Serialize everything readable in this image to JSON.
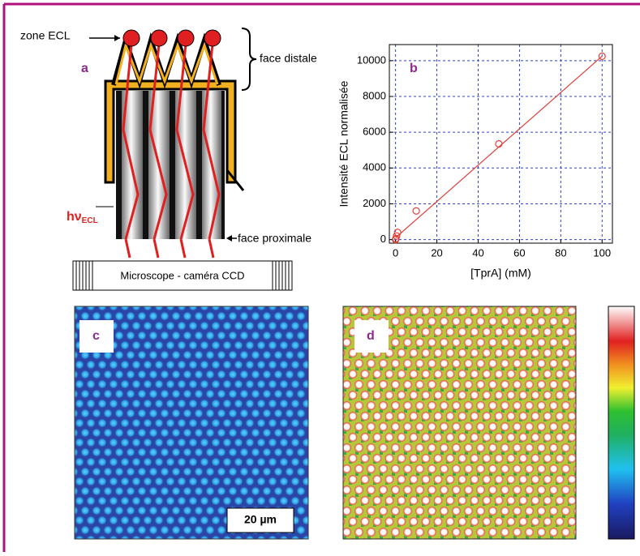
{
  "figure": {
    "panel_a": {
      "label": "a",
      "zone": "zone ECL",
      "distal": "face distale",
      "hv": "hν",
      "hv_sub": "ECL",
      "proximal": "face proximale",
      "camera": "Microscope - caméra CCD"
    },
    "panel_c": {
      "label": "c",
      "scale_bar": "20 µm"
    },
    "panel_d": {
      "label": "d"
    }
  },
  "chart_data": {
    "type": "scatter",
    "label": "b",
    "x_label": "[TprA] (mM)",
    "y_label": "Intensité ECL normalisée",
    "x": [
      0,
      0.1,
      0.5,
      1,
      10,
      50,
      100
    ],
    "values": [
      0,
      50,
      200,
      400,
      1600,
      5350,
      10250
    ],
    "color": "#e0403a",
    "fit": {
      "x": [
        0,
        100
      ],
      "values": [
        100,
        10250
      ]
    },
    "xlim": [
      -3,
      105
    ],
    "ylim": [
      -200,
      10900
    ],
    "xticks": [
      0,
      20,
      40,
      60,
      80,
      100
    ],
    "yticks": [
      0,
      2000,
      4000,
      6000,
      8000,
      10000
    ],
    "grid": true
  }
}
